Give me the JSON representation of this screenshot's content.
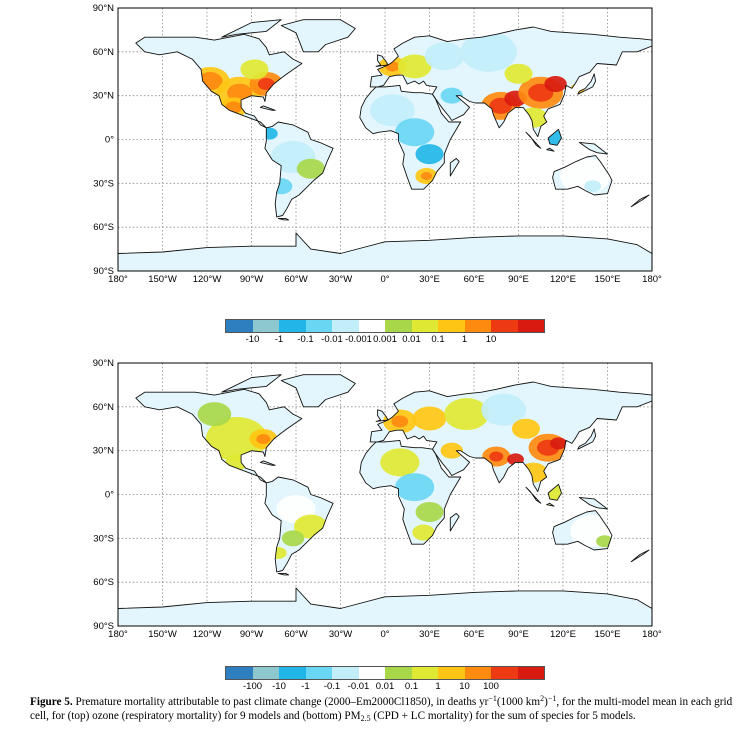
{
  "maps": [
    {
      "lat_labels": [
        "90°N",
        "60°N",
        "30°N",
        "0°",
        "30°S",
        "60°S",
        "90°S"
      ],
      "lon_labels": [
        "180°",
        "150°W",
        "120°W",
        "90°W",
        "60°W",
        "30°W",
        "0°",
        "30°E",
        "60°E",
        "90°E",
        "120°E",
        "150°E",
        "180°"
      ],
      "colorbar": {
        "colors": [
          "#2e7fc0",
          "#8ec8cf",
          "#22b6e8",
          "#69d6f4",
          "#c2eefa",
          "#ffffff",
          "#a8d84a",
          "#dfe832",
          "#ffc514",
          "#ff8a10",
          "#ee3a12",
          "#d81a10"
        ],
        "labels": [
          "-10",
          "-1",
          "-0.1",
          "-0.01",
          "-0.001",
          "0.001",
          "0.01",
          "0.1",
          "1",
          "10"
        ]
      }
    },
    {
      "lat_labels": [
        "90°N",
        "60°N",
        "30°N",
        "0°",
        "30°S",
        "60°S",
        "90°S"
      ],
      "lon_labels": [
        "180°",
        "150°W",
        "120°W",
        "90°W",
        "60°W",
        "30°W",
        "0°",
        "30°E",
        "60°E",
        "90°E",
        "120°E",
        "150°E",
        "180°"
      ],
      "colorbar": {
        "colors": [
          "#2e7fc0",
          "#8ec8cf",
          "#22b6e8",
          "#69d6f4",
          "#c2eefa",
          "#ffffff",
          "#a8d84a",
          "#dfe832",
          "#ffc514",
          "#ff8a10",
          "#ee3a12",
          "#d81a10"
        ],
        "labels": [
          "-100",
          "-10",
          "-1",
          "-0.1",
          "-0.01",
          "0.01",
          "0.1",
          "1",
          "10",
          "100"
        ]
      }
    }
  ],
  "caption": {
    "label": "Figure 5.",
    "text_1": " Premature mortality attributable to past climate change (2000–Em2000Cl1850), in deaths yr",
    "sup_1": "−1",
    "text_2": "(1000 km",
    "sup_2": "2",
    "text_3": ")",
    "sup_3": "−1",
    "text_4": ", for the multi-model mean in each grid cell, for (top) ozone (respiratory mortality) for 9 models and (bottom) PM",
    "sub_1": "2.5",
    "text_5": " (CPD + LC mortality) for the sum of species for 5 models."
  }
}
